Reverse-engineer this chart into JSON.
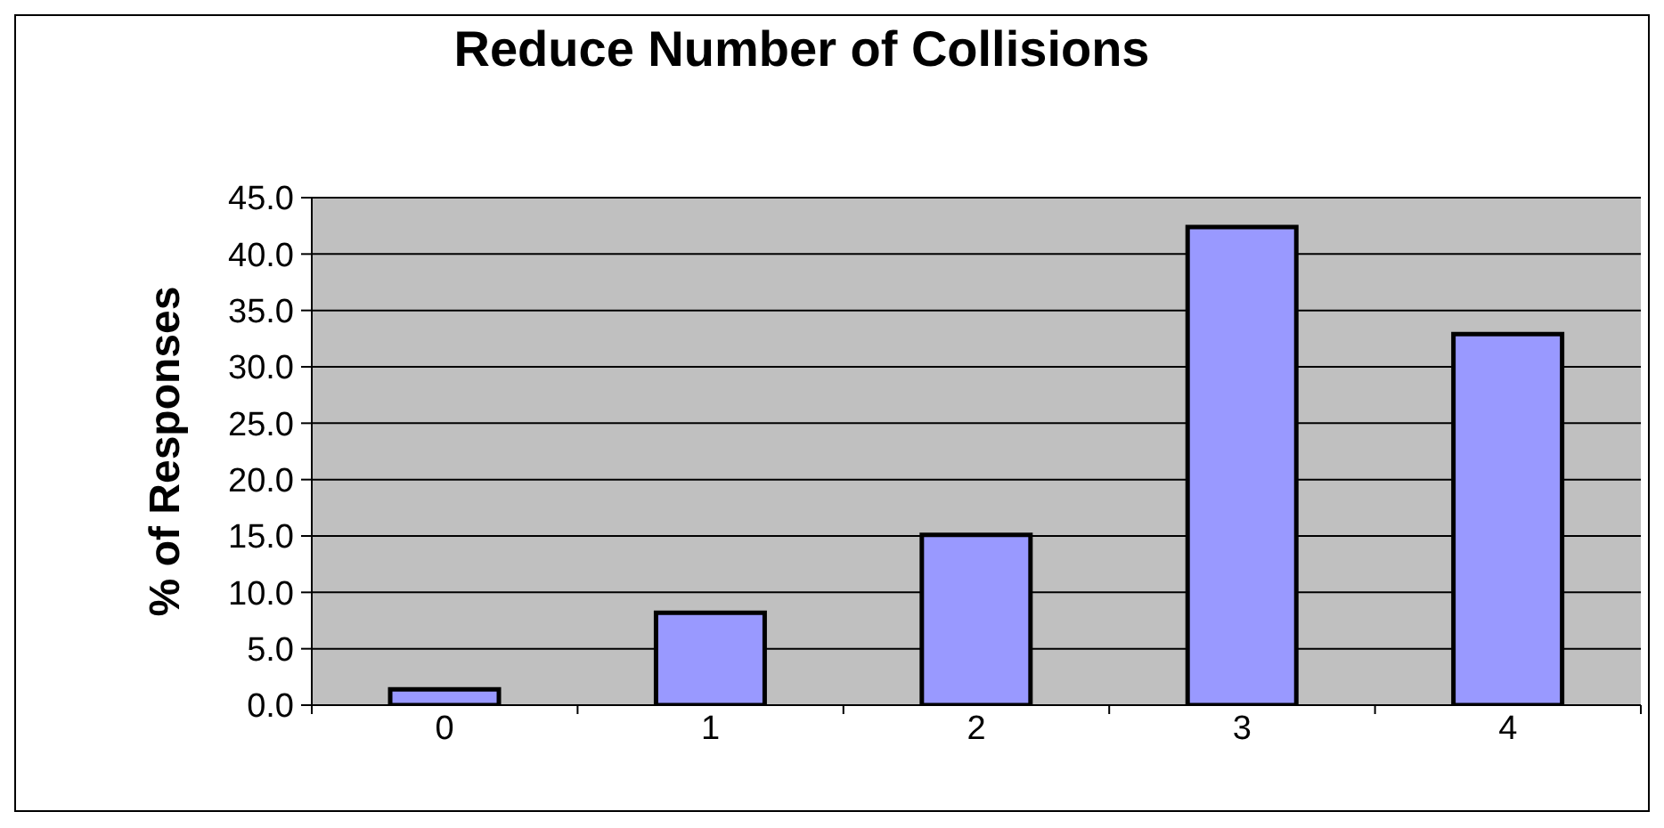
{
  "chart_data": {
    "type": "bar",
    "title": "Reduce Number of Collisions",
    "ylabel": "% of Responses",
    "categories": [
      "0",
      "1",
      "2",
      "3",
      "4"
    ],
    "values": [
      1.4,
      8.2,
      15.1,
      42.4,
      32.9
    ],
    "color": "#9999ff",
    "ylim": [
      0,
      45
    ],
    "yticks": [
      {
        "value": 0,
        "label": "0.0"
      },
      {
        "value": 5,
        "label": "5.0"
      },
      {
        "value": 10,
        "label": "10.0"
      },
      {
        "value": 15,
        "label": "15.0"
      },
      {
        "value": 20,
        "label": "20.0"
      },
      {
        "value": 25,
        "label": "25.0"
      },
      {
        "value": 30,
        "label": "30.0"
      },
      {
        "value": 35,
        "label": "35.0"
      },
      {
        "value": 40,
        "label": "40.0"
      },
      {
        "value": 45,
        "label": "45.0"
      }
    ],
    "grid": "y"
  }
}
